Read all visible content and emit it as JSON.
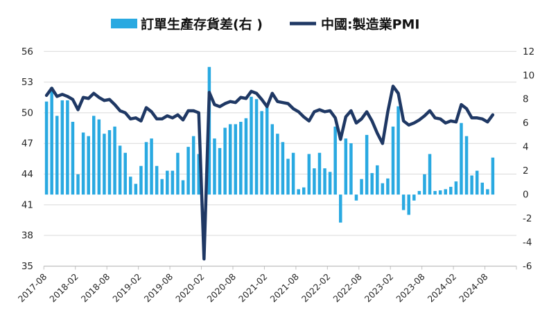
{
  "legend": {
    "items": [
      {
        "label": "訂單生產存貨差(右 )",
        "marker": "bar-swatch",
        "color": "#29A9E1"
      },
      {
        "label": "中國:製造業PMI",
        "marker": "line-swatch",
        "color": "#1F3864"
      }
    ]
  },
  "chart_data": {
    "type": "bar+line",
    "legend_position": "top-center",
    "grid": "horizontal",
    "background": "#FFFFFF",
    "gridline_color": "#D9D9D9",
    "axis_line_color": "#BFBFBF",
    "categories": [
      "2017-08",
      "2017-09",
      "2017-10",
      "2017-11",
      "2017-12",
      "2018-01",
      "2018-02",
      "2018-03",
      "2018-04",
      "2018-05",
      "2018-06",
      "2018-07",
      "2018-08",
      "2018-09",
      "2018-10",
      "2018-11",
      "2018-12",
      "2019-01",
      "2019-02",
      "2019-03",
      "2019-04",
      "2019-05",
      "2019-06",
      "2019-07",
      "2019-08",
      "2019-09",
      "2019-10",
      "2019-11",
      "2019-12",
      "2020-01",
      "2020-02",
      "2020-03",
      "2020-04",
      "2020-05",
      "2020-06",
      "2020-07",
      "2020-08",
      "2020-09",
      "2020-10",
      "2020-11",
      "2020-12",
      "2021-01",
      "2021-02",
      "2021-03",
      "2021-04",
      "2021-05",
      "2021-06",
      "2021-07",
      "2021-08",
      "2021-09",
      "2021-10",
      "2021-11",
      "2021-12",
      "2022-01",
      "2022-02",
      "2022-03",
      "2022-04",
      "2022-05",
      "2022-06",
      "2022-07",
      "2022-08",
      "2022-09",
      "2022-10",
      "2022-11",
      "2022-12",
      "2023-01",
      "2023-02",
      "2023-03",
      "2023-04",
      "2023-05",
      "2023-06",
      "2023-07",
      "2023-08",
      "2023-09",
      "2023-10",
      "2023-11",
      "2023-12",
      "2024-01",
      "2024-02",
      "2024-03",
      "2024-04",
      "2024-05",
      "2024-06",
      "2024-07",
      "2024-08",
      "2024-09"
    ],
    "series": [
      {
        "name": "訂單生產存貨差(右 )",
        "type": "bar",
        "axis": "right",
        "color": "#29A9E1",
        "values": [
          7.8,
          9.0,
          6.6,
          7.9,
          7.9,
          6.1,
          1.7,
          5.2,
          4.9,
          6.6,
          6.3,
          5.1,
          5.4,
          5.7,
          4.1,
          3.5,
          1.5,
          0.9,
          2.4,
          4.4,
          4.7,
          2.4,
          1.3,
          2.0,
          2.0,
          3.5,
          1.2,
          4.0,
          4.9,
          3.4,
          0.0,
          10.7,
          4.7,
          3.9,
          5.6,
          5.9,
          5.9,
          6.1,
          6.4,
          8.2,
          8.0,
          7.0,
          7.3,
          5.9,
          5.1,
          4.4,
          3.0,
          3.5,
          0.45,
          0.6,
          3.4,
          2.2,
          3.5,
          2.2,
          1.9,
          5.7,
          -2.35,
          4.7,
          4.3,
          -0.5,
          1.3,
          5.0,
          1.8,
          2.45,
          0.95,
          1.35,
          5.7,
          7.4,
          -1.3,
          -1.7,
          -0.5,
          0.3,
          1.7,
          3.4,
          0.3,
          0.35,
          0.45,
          0.65,
          1.1,
          6.0,
          4.9,
          1.6,
          2.0,
          1.0,
          0.45,
          3.1
        ]
      },
      {
        "name": "中國:製造業PMI",
        "type": "line",
        "axis": "left",
        "color": "#1F3864",
        "values": [
          51.7,
          52.4,
          51.6,
          51.8,
          51.6,
          51.3,
          50.3,
          51.5,
          51.4,
          51.9,
          51.5,
          51.2,
          51.3,
          50.8,
          50.2,
          50.0,
          49.4,
          49.5,
          49.2,
          50.5,
          50.1,
          49.4,
          49.4,
          49.7,
          49.5,
          49.8,
          49.3,
          50.2,
          50.2,
          50.0,
          35.7,
          52.0,
          50.8,
          50.6,
          50.9,
          51.1,
          51.0,
          51.5,
          51.4,
          52.1,
          51.9,
          51.3,
          50.6,
          51.9,
          51.1,
          51.0,
          50.9,
          50.4,
          50.1,
          49.6,
          49.2,
          50.1,
          50.3,
          50.1,
          50.2,
          49.5,
          47.4,
          49.6,
          50.2,
          49.0,
          49.4,
          50.1,
          49.2,
          48.0,
          47.0,
          50.1,
          52.6,
          51.9,
          49.2,
          48.8,
          49.0,
          49.3,
          49.7,
          50.2,
          49.5,
          49.4,
          49.0,
          49.2,
          49.1,
          50.8,
          50.4,
          49.5,
          49.5,
          49.4,
          49.1,
          49.8
        ]
      }
    ],
    "left_axis": {
      "min": 35,
      "max": 56,
      "ticks": [
        56,
        53,
        50,
        47,
        44,
        41,
        38,
        35
      ]
    },
    "right_axis": {
      "min": -6,
      "max": 12,
      "ticks": [
        12,
        10,
        8,
        6,
        4,
        2,
        0,
        -2,
        -4,
        -6
      ]
    },
    "x_axis": {
      "label_interval_months": 6,
      "tick_labels": [
        "2017-08",
        "2018-02",
        "2018-08",
        "2019-02",
        "2019-08",
        "2020-02",
        "2020-08",
        "2021-02",
        "2021-08",
        "2022-02",
        "2022-08",
        "2023-02",
        "2023-08",
        "2024-02",
        "2024-08"
      ]
    }
  }
}
